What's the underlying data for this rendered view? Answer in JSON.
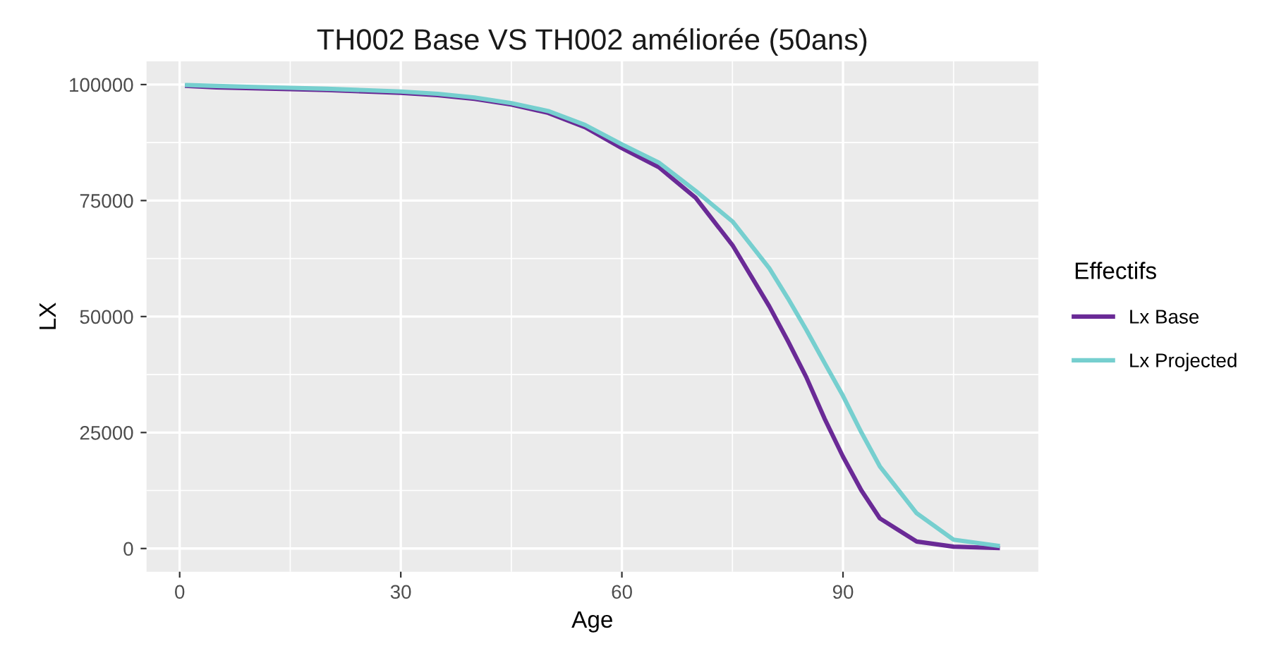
{
  "chart_data": {
    "type": "line",
    "title": "TH002 Base VS TH002 améliorée (50ans)",
    "xlabel": "Age",
    "ylabel": "LX",
    "legend_title": "Effectifs",
    "x": [
      1,
      5,
      10,
      15,
      20,
      25,
      30,
      35,
      40,
      45,
      50,
      55,
      60,
      65,
      70,
      75,
      80,
      82.5,
      85,
      87.5,
      90,
      92.5,
      95,
      100,
      105,
      111
    ],
    "series": [
      {
        "name": "Lx Base",
        "color": "#6a2a96",
        "values": [
          99700,
          99400,
          99200,
          99000,
          98800,
          98500,
          98200,
          97700,
          96900,
          95700,
          93900,
          90800,
          86300,
          82200,
          75600,
          65400,
          52200,
          44800,
          37000,
          28000,
          19800,
          12500,
          6500,
          1500,
          400,
          100
        ]
      },
      {
        "name": "Lx Projected",
        "color": "#76cfcf",
        "values": [
          99900,
          99700,
          99500,
          99300,
          99100,
          98800,
          98500,
          98000,
          97200,
          96000,
          94300,
          91300,
          87100,
          83200,
          77100,
          70500,
          60400,
          54000,
          47200,
          40000,
          32900,
          25000,
          17700,
          7600,
          1900,
          600
        ]
      }
    ],
    "xlim": [
      -4.5,
      116.5
    ],
    "ylim": [
      -5000,
      105000
    ],
    "xticks": [
      0,
      30,
      60,
      90
    ],
    "yticks": [
      0,
      25000,
      50000,
      75000,
      100000
    ],
    "grid": true,
    "legend": "right",
    "line_style": "solid"
  }
}
